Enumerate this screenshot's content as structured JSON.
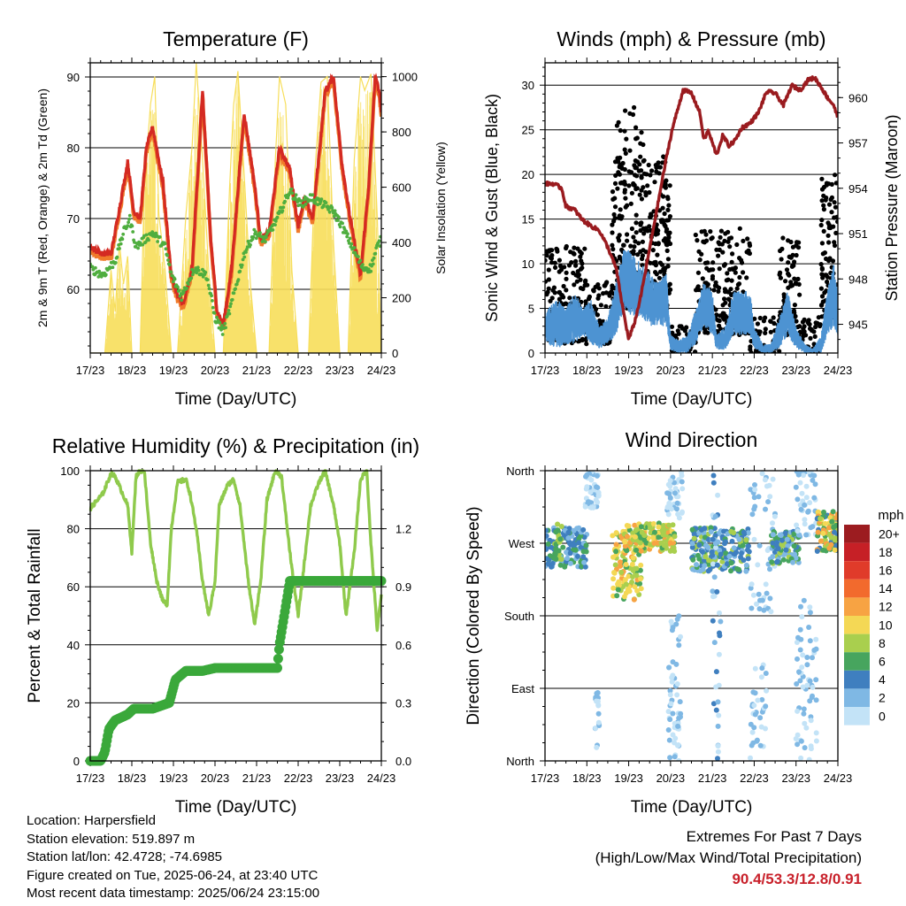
{
  "footer": {
    "location": "Location: Harpersfield",
    "elevation": "Station elevation: 519.897 m",
    "latlon": "Station lat/lon: 42.4728; -74.6985",
    "created": "Figure created on Tue, 2025-06-24, at 23:40 UTC",
    "recent": "Most recent data timestamp: 2025/06/24 23:15:00",
    "extremes_title": "Extremes For Past 7 Days",
    "extremes_subtitle": "(High/Low/Max Wind/Total Precipitation)",
    "extremes_values": "90.4/53.3/12.8/0.91"
  },
  "chart_data": [
    {
      "id": "temperature",
      "type": "line",
      "title": "Temperature (F)",
      "xlabel": "Time (Day/UTC)",
      "ylabel": "2m & 9m T (Red, Orange) & 2m Td (Green)",
      "y2label": "Solar Insolation (Yellow)",
      "x_ticks": [
        "17/23",
        "18/23",
        "19/23",
        "20/23",
        "21/23",
        "22/23",
        "23/23",
        "24/23"
      ],
      "xlim": [
        0,
        7
      ],
      "ylim": [
        51,
        92
      ],
      "y_ticks": [
        60,
        70,
        80,
        90
      ],
      "y2lim": [
        0,
        1050
      ],
      "y2_ticks": [
        0,
        200,
        400,
        600,
        800,
        1000
      ],
      "colors": {
        "t2m": "#d42a22",
        "t9m": "#f07a2a",
        "td": "#4fae3f",
        "solar": "#f7de5a"
      },
      "series": [
        {
          "key": "t2m",
          "x": [
            0,
            0.3,
            0.5,
            0.75,
            0.9,
            1.05,
            1.2,
            1.35,
            1.5,
            1.75,
            1.95,
            2.1,
            2.25,
            2.45,
            2.7,
            2.9,
            3.05,
            3.2,
            3.4,
            3.7,
            3.95,
            4.1,
            4.3,
            4.55,
            4.8,
            5.0,
            5.15,
            5.35,
            5.65,
            5.85,
            6.05,
            6.25,
            6.5,
            6.7,
            6.85,
            6.95,
            7.0
          ],
          "y": [
            66,
            65,
            65,
            73,
            78,
            71,
            70,
            80,
            83,
            75,
            62,
            59,
            58,
            63,
            88,
            67,
            57,
            55,
            63,
            85,
            75,
            67,
            68,
            80,
            77,
            69,
            73,
            70,
            88,
            90,
            78,
            70,
            62,
            75,
            90,
            88,
            85
          ]
        },
        {
          "key": "td",
          "x": [
            0,
            0.3,
            0.6,
            0.8,
            0.95,
            1.1,
            1.3,
            1.5,
            1.8,
            1.95,
            2.2,
            2.5,
            2.8,
            3.0,
            3.2,
            3.4,
            3.7,
            3.95,
            4.2,
            4.5,
            4.8,
            5.05,
            5.3,
            5.6,
            5.85,
            6.05,
            6.3,
            6.55,
            6.75,
            6.9,
            7.0
          ],
          "y": [
            63,
            62,
            64,
            68,
            70,
            66,
            67,
            68,
            66,
            62,
            59,
            63,
            62,
            56,
            54,
            58,
            65,
            68,
            67,
            70,
            74,
            72,
            73,
            72,
            71,
            69,
            66,
            63,
            63,
            66,
            67
          ]
        },
        {
          "key": "solar",
          "x": [
            0,
            0.35,
            0.5,
            0.6,
            0.7,
            0.8,
            0.9,
            1.0,
            1.2,
            1.3,
            1.45,
            1.55,
            1.65,
            1.8,
            1.95,
            2.1,
            2.3,
            2.45,
            2.55,
            2.7,
            2.85,
            3.0,
            3.2,
            3.35,
            3.45,
            3.55,
            3.7,
            3.85,
            4.0,
            4.3,
            4.45,
            4.55,
            4.7,
            4.85,
            5.0,
            5.25,
            5.4,
            5.55,
            5.7,
            5.85,
            6.0,
            6.2,
            6.35,
            6.5,
            6.6,
            6.75,
            6.9,
            7.0
          ],
          "y": [
            0,
            0,
            300,
            150,
            400,
            250,
            350,
            0,
            0,
            600,
            900,
            1000,
            500,
            300,
            0,
            0,
            500,
            750,
            1050,
            700,
            300,
            0,
            0,
            600,
            900,
            1020,
            650,
            250,
            0,
            0,
            700,
            1000,
            900,
            300,
            0,
            0,
            650,
            980,
            1000,
            400,
            0,
            0,
            700,
            1000,
            950,
            1010,
            500,
            0
          ]
        }
      ]
    },
    {
      "id": "winds",
      "type": "scatter",
      "title": "Winds (mph) & Pressure (mb)",
      "xlabel": "Time (Day/UTC)",
      "ylabel": "Sonic Wind & Gust (Blue, Black)",
      "y2label": "Station Pressure (Maroon)",
      "x_ticks": [
        "17/23",
        "18/23",
        "19/23",
        "20/23",
        "21/23",
        "22/23",
        "23/23",
        "24/23"
      ],
      "xlim": [
        0,
        7
      ],
      "ylim": [
        0,
        32.5
      ],
      "y_ticks": [
        0,
        5,
        10,
        15,
        20,
        25,
        30
      ],
      "y2lim": [
        943.1,
        962.3
      ],
      "y2_ticks": [
        945,
        948,
        951,
        954,
        957,
        960
      ],
      "colors": {
        "wind": "#4d93d2",
        "gust": "#000000",
        "pressure": "#9a1b1f"
      },
      "series": [
        {
          "key": "pressure",
          "x": [
            0,
            0.2,
            0.4,
            0.5,
            0.7,
            0.9,
            1.1,
            1.3,
            1.5,
            1.7,
            1.85,
            2.0,
            2.15,
            2.3,
            2.5,
            2.7,
            2.9,
            3.05,
            3.3,
            3.5,
            3.7,
            3.8,
            3.9,
            4.1,
            4.25,
            4.4,
            4.55,
            4.7,
            4.9,
            5.1,
            5.3,
            5.5,
            5.7,
            5.9,
            6.1,
            6.3,
            6.45,
            6.6,
            6.75,
            6.9,
            7.0
          ],
          "y": [
            954.3,
            954.3,
            954.0,
            952.8,
            952.6,
            951.9,
            951.5,
            951.2,
            950.1,
            948.7,
            946.2,
            944.0,
            945.2,
            947.0,
            950.0,
            953.0,
            956.0,
            958.0,
            960.5,
            960.3,
            959.0,
            957.2,
            957.8,
            956.2,
            957.5,
            956.8,
            957.2,
            958.0,
            958.3,
            959.0,
            960.4,
            960.3,
            959.5,
            960.8,
            960.5,
            961.2,
            961.3,
            960.7,
            960.0,
            959.5,
            958.6
          ]
        },
        {
          "key": "wind_band",
          "x": [
            0,
            0.3,
            0.5,
            0.7,
            0.9,
            1.1,
            1.3,
            1.5,
            1.7,
            1.9,
            2.1,
            2.3,
            2.5,
            2.7,
            2.9,
            3.0,
            3.2,
            3.4,
            3.6,
            3.8,
            4.0,
            4.1,
            4.3,
            4.5,
            4.7,
            4.9,
            5.0,
            5.2,
            5.4,
            5.6,
            5.8,
            6.0,
            6.2,
            6.4,
            6.6,
            6.75,
            6.9,
            7.0
          ],
          "y_low": [
            1,
            0.5,
            1,
            1,
            2,
            1,
            0.5,
            1,
            2,
            5,
            4,
            4,
            3,
            3,
            3,
            0.3,
            0,
            0,
            1,
            3,
            2,
            0.3,
            0.3,
            2,
            2,
            2,
            0.5,
            0,
            0,
            0.5,
            2,
            0.5,
            0,
            0,
            0,
            2,
            3,
            2
          ],
          "y_high": [
            5,
            6,
            5,
            7,
            5,
            6,
            3,
            4,
            8,
            12,
            11,
            10,
            9,
            8,
            9,
            2,
            1.5,
            2,
            5,
            8,
            7,
            2,
            3,
            7,
            7,
            7,
            3,
            1,
            1,
            4,
            7,
            3,
            1,
            0.5,
            2,
            7,
            10,
            7
          ]
        },
        {
          "key": "gust_clusters",
          "clusters": [
            {
              "x0": 0,
              "x1": 1.0,
              "y0": 1,
              "y1": 12,
              "n": 140
            },
            {
              "x0": 1.0,
              "x1": 1.6,
              "y0": 1,
              "y1": 8,
              "n": 60
            },
            {
              "x0": 1.6,
              "x1": 3.0,
              "y0": 5,
              "y1": 22,
              "n": 320
            },
            {
              "x0": 1.7,
              "x1": 2.4,
              "y0": 18,
              "y1": 28,
              "n": 40
            },
            {
              "x0": 3.0,
              "x1": 3.6,
              "y0": 0,
              "y1": 3,
              "n": 40
            },
            {
              "x0": 3.6,
              "x1": 4.9,
              "y0": 2,
              "y1": 14,
              "n": 200
            },
            {
              "x0": 4.9,
              "x1": 5.6,
              "y0": 0,
              "y1": 4,
              "n": 50
            },
            {
              "x0": 5.6,
              "x1": 6.1,
              "y0": 2,
              "y1": 13,
              "n": 80
            },
            {
              "x0": 6.1,
              "x1": 6.6,
              "y0": 0,
              "y1": 4,
              "n": 40
            },
            {
              "x0": 6.6,
              "x1": 7.0,
              "y0": 4,
              "y1": 20,
              "n": 90
            }
          ]
        }
      ]
    },
    {
      "id": "humidity",
      "type": "line",
      "title": "Relative Humidity (%) & Precipitation (in)",
      "xlabel": "Time (Day/UTC)",
      "ylabel": "Percent & Total Rainfall",
      "x_ticks": [
        "17/23",
        "18/23",
        "19/23",
        "20/23",
        "21/23",
        "22/23",
        "23/23",
        "24/23"
      ],
      "xlim": [
        0,
        7
      ],
      "ylim": [
        0,
        100
      ],
      "y_ticks": [
        0,
        20,
        40,
        60,
        80,
        100
      ],
      "y2lim": [
        0,
        1.5
      ],
      "y2_ticks": [
        "0.0",
        "0.3",
        "0.6",
        "0.9",
        "1.2"
      ],
      "colors": {
        "rh": "#8fca4c",
        "rain": "#3aa83a"
      },
      "series": [
        {
          "key": "rh",
          "x": [
            0,
            0.3,
            0.5,
            0.6,
            0.75,
            0.9,
            1.0,
            1.1,
            1.2,
            1.3,
            1.45,
            1.6,
            1.75,
            1.85,
            1.95,
            2.1,
            2.3,
            2.4,
            2.55,
            2.7,
            2.85,
            3.0,
            3.1,
            3.3,
            3.45,
            3.6,
            3.8,
            3.95,
            4.1,
            4.25,
            4.45,
            4.6,
            4.8,
            5.0,
            5.1,
            5.3,
            5.5,
            5.65,
            5.85,
            6.0,
            6.15,
            6.35,
            6.5,
            6.65,
            6.75,
            6.9,
            7.0
          ],
          "y": [
            87,
            92,
            99,
            98,
            93,
            88,
            72,
            98,
            100,
            100,
            75,
            62,
            55,
            54,
            80,
            96,
            97,
            92,
            80,
            62,
            50,
            62,
            88,
            95,
            97,
            88,
            62,
            47,
            62,
            90,
            100,
            98,
            72,
            50,
            62,
            88,
            96,
            100,
            88,
            75,
            50,
            72,
            97,
            100,
            75,
            45,
            57
          ]
        },
        {
          "key": "rain",
          "x": [
            0,
            0.25,
            0.35,
            0.45,
            0.6,
            0.9,
            1.05,
            1.2,
            1.5,
            1.9,
            2.05,
            2.3,
            2.7,
            3.0,
            3.2,
            3.6,
            4.05,
            4.5,
            4.55,
            4.8,
            5.2,
            5.8,
            6.3,
            6.8,
            7.0
          ],
          "y": [
            0,
            0,
            3,
            11,
            14,
            16,
            18,
            18,
            18,
            20,
            28,
            31,
            31,
            32,
            32,
            32,
            32,
            32,
            40,
            62,
            62,
            62,
            62,
            62,
            62
          ]
        }
      ]
    },
    {
      "id": "wind_direction",
      "type": "scatter",
      "title": "Wind Direction",
      "xlabel": "Time (Day/UTC)",
      "ylabel": "Direction (Colored By Speed)",
      "x_ticks": [
        "17/23",
        "18/23",
        "19/23",
        "20/23",
        "21/23",
        "22/23",
        "23/23",
        "24/23"
      ],
      "xlim": [
        0,
        7
      ],
      "y_ticks": [
        "North",
        "East",
        "South",
        "West",
        "North"
      ],
      "ylim": [
        0,
        360
      ],
      "legend_title": "mph",
      "legend": [
        {
          "label": "20+",
          "color": "#9c1c20"
        },
        {
          "label": "18",
          "color": "#c62026"
        },
        {
          "label": "16",
          "color": "#e03b2a"
        },
        {
          "label": "14",
          "color": "#f26a2d"
        },
        {
          "label": "12",
          "color": "#f7a343"
        },
        {
          "label": "10",
          "color": "#f4d855"
        },
        {
          "label": "8",
          "color": "#a9cf4e"
        },
        {
          "label": "6",
          "color": "#47a55e"
        },
        {
          "label": "4",
          "color": "#3f7fbf"
        },
        {
          "label": "2",
          "color": "#7fb8e4"
        },
        {
          "label": "0",
          "color": "#c3e3f7"
        }
      ],
      "clusters": [
        {
          "x0": 0.0,
          "x1": 1.0,
          "y0": 240,
          "y1": 290,
          "n": 120,
          "colors": [
            8,
            7,
            9,
            8
          ]
        },
        {
          "x0": 0.2,
          "x1": 0.4,
          "y0": 250,
          "y1": 295,
          "n": 25,
          "colors": [
            7,
            6
          ]
        },
        {
          "x0": 0.95,
          "x1": 1.3,
          "y0": 310,
          "y1": 360,
          "n": 45,
          "colors": [
            9,
            10,
            10
          ]
        },
        {
          "x0": 1.2,
          "x1": 1.3,
          "y0": 10,
          "y1": 90,
          "n": 18,
          "colors": [
            9,
            10
          ]
        },
        {
          "x0": 1.6,
          "x1": 2.3,
          "y0": 200,
          "y1": 285,
          "n": 110,
          "colors": [
            4,
            5,
            6,
            7,
            5
          ]
        },
        {
          "x0": 1.9,
          "x1": 3.1,
          "y0": 260,
          "y1": 295,
          "n": 170,
          "colors": [
            5,
            6,
            7,
            4,
            6
          ]
        },
        {
          "x0": 2.9,
          "x1": 3.3,
          "y0": 300,
          "y1": 360,
          "n": 40,
          "colors": [
            10,
            9,
            10
          ]
        },
        {
          "x0": 2.95,
          "x1": 3.25,
          "y0": 0,
          "y1": 180,
          "n": 55,
          "colors": [
            10,
            9
          ]
        },
        {
          "x0": 3.5,
          "x1": 4.9,
          "y0": 235,
          "y1": 290,
          "n": 210,
          "colors": [
            8,
            7,
            6,
            9,
            8
          ]
        },
        {
          "x0": 4.0,
          "x1": 4.2,
          "y0": 0,
          "y1": 360,
          "n": 40,
          "colors": [
            8,
            9,
            10
          ]
        },
        {
          "x0": 4.9,
          "x1": 5.5,
          "y0": 180,
          "y1": 360,
          "n": 50,
          "colors": [
            10,
            9
          ]
        },
        {
          "x0": 4.9,
          "x1": 5.3,
          "y0": 0,
          "y1": 120,
          "n": 35,
          "colors": [
            10,
            9
          ]
        },
        {
          "x0": 5.4,
          "x1": 6.1,
          "y0": 245,
          "y1": 285,
          "n": 110,
          "colors": [
            8,
            7,
            6,
            9
          ]
        },
        {
          "x0": 6.0,
          "x1": 6.5,
          "y0": 280,
          "y1": 360,
          "n": 45,
          "colors": [
            10,
            9
          ]
        },
        {
          "x0": 6.0,
          "x1": 6.5,
          "y0": 0,
          "y1": 200,
          "n": 60,
          "colors": [
            10,
            9
          ]
        },
        {
          "x0": 6.5,
          "x1": 7.0,
          "y0": 260,
          "y1": 310,
          "n": 90,
          "colors": [
            5,
            6,
            7,
            4,
            8
          ]
        }
      ]
    }
  ]
}
